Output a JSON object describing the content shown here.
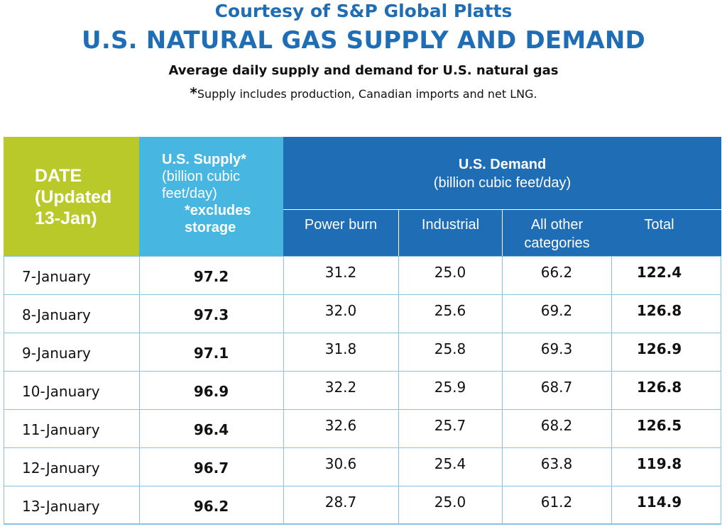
{
  "header": {
    "courtesy": "Courtesy of S&P Global Platts",
    "title": "U.S. NATURAL GAS SUPPLY AND DEMAND",
    "subtitle": "Average daily supply and demand for U.S. natural gas",
    "footnote_star": "*",
    "footnote": "Supply includes production, Canadian imports and net LNG."
  },
  "table_header": {
    "date_line1": "DATE",
    "date_line2": "(Updated",
    "date_line3": "13-Jan)",
    "supply_title": "U.S. Supply*",
    "supply_units": "(billion cubic feet/day)",
    "supply_note": "*excludes storage",
    "demand_title": "U.S. Demand",
    "demand_units": "(billion cubic feet/day)",
    "cols": [
      "Power burn",
      "Industrial",
      "All other categories",
      "Total"
    ]
  },
  "colors": {
    "date_header": "#b9c92a",
    "supply_header": "#47b6e1",
    "demand_header": "#1f6db5",
    "title_blue": "#1f6db5",
    "grid_line": "#86c3de"
  },
  "chart_data": {
    "type": "table",
    "title": "U.S. NATURAL GAS SUPPLY AND DEMAND",
    "columns": [
      "DATE (Updated 13-Jan)",
      "U.S. Supply*",
      "Power burn",
      "Industrial",
      "All other categories",
      "Total"
    ],
    "rows": [
      {
        "date": "7-January",
        "supply": "97.2",
        "power_burn": "31.2",
        "industrial": "25.0",
        "all_other": "66.2",
        "total": "122.4"
      },
      {
        "date": "8-January",
        "supply": "97.3",
        "power_burn": "32.0",
        "industrial": "25.6",
        "all_other": "69.2",
        "total": "126.8"
      },
      {
        "date": "9-January",
        "supply": "97.1",
        "power_burn": "31.8",
        "industrial": "25.8",
        "all_other": "69.3",
        "total": "126.9"
      },
      {
        "date": "10-January",
        "supply": "96.9",
        "power_burn": "32.2",
        "industrial": "25.9",
        "all_other": "68.7",
        "total": "126.8"
      },
      {
        "date": "11-January",
        "supply": "96.4",
        "power_burn": "32.6",
        "industrial": "25.7",
        "all_other": "68.2",
        "total": "126.5"
      },
      {
        "date": "12-January",
        "supply": "96.7",
        "power_burn": "30.6",
        "industrial": "25.4",
        "all_other": "63.8",
        "total": "119.8"
      },
      {
        "date": "13-January",
        "supply": "96.2",
        "power_burn": "28.7",
        "industrial": "25.0",
        "all_other": "61.2",
        "total": "114.9"
      }
    ]
  }
}
